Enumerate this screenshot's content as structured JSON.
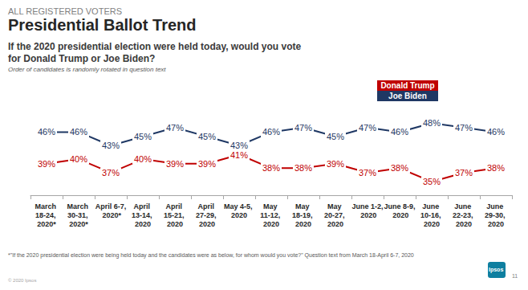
{
  "kicker": "ALL REGISTERED VOTERS",
  "footnote": "*\"If the 2020 presidential election were being held today and the candidates were as below, for whom would you vote?\" Question text from March 18-April 6-7, 2020",
  "copyright": "© 2020 Ipsos",
  "page_number": "11",
  "logo": "Ipsos",
  "chart_data": {
    "type": "line",
    "title": "Presidential Ballot Trend",
    "subtitle": "If the 2020 presidential election were held today, would you vote for Donald Trump or Joe Biden?",
    "annotations": [
      "Order of candidates is randomly rotated in question text"
    ],
    "categories": [
      "March 18-24, 2020*",
      "March 30-31, 2020*",
      "April 6-7, 2020*",
      "April 13-14, 2020",
      "April 15-21, 2020",
      "April 27-29, 2020",
      "May 4-5, 2020",
      "May 11-12, 2020",
      "May 18-19, 2020",
      "May 20-27, 2020",
      "June 1-2, 2020",
      "June 8-9, 2020",
      "June 10-16, 2020",
      "June 22-23, 2020",
      "June 29-30, 2020"
    ],
    "series": [
      {
        "name": "Donald Trump",
        "color": "#c00000",
        "values": [
          39,
          40,
          37,
          40,
          39,
          39,
          41,
          38,
          38,
          39,
          37,
          38,
          35,
          37,
          38
        ],
        "value_labels": [
          "39%",
          "40%",
          "37%",
          "40%",
          "39%",
          "39%",
          "41%",
          "38%",
          "38%",
          "39%",
          "37%",
          "38%",
          "35%",
          "37%",
          "38%"
        ]
      },
      {
        "name": "Joe Biden",
        "color": "#1f3864",
        "values": [
          46,
          46,
          43,
          45,
          47,
          45,
          43,
          46,
          47,
          45,
          47,
          46,
          48,
          47,
          46
        ],
        "value_labels": [
          "46%",
          "46%",
          "43%",
          "45%",
          "47%",
          "45%",
          "43%",
          "46%",
          "47%",
          "45%",
          "47%",
          "46%",
          "48%",
          "47%",
          "46%"
        ]
      }
    ],
    "ylim": [
      32,
      50
    ],
    "grid": false,
    "legend": "upper right",
    "data_labels": true,
    "tick_labels": "x"
  }
}
